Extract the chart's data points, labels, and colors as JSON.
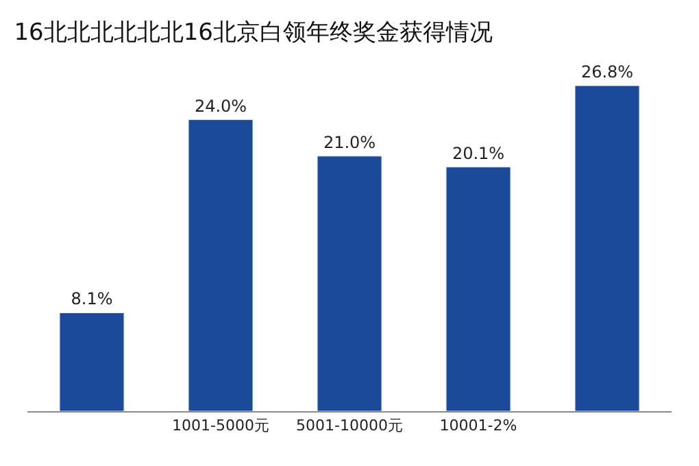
{
  "chart_data": {
    "type": "bar",
    "title": "16北北北北北北16北京白领年终奖金获得情况",
    "categories": [
      null,
      "1001-5000元",
      "5001-10000元",
      "10001-2%",
      null
    ],
    "values": [
      8.1,
      24.0,
      21.0,
      20.1,
      26.8
    ],
    "value_labels": [
      "8.1%",
      "24.0%",
      "21.0%",
      "20.1%",
      "26.8%"
    ],
    "color": "#1b4a9b",
    "legend": false
  }
}
